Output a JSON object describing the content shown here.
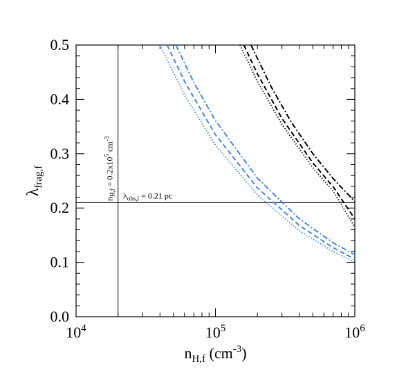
{
  "chart_data": {
    "type": "line",
    "xscale": "log",
    "xlim": [
      10000,
      1000000
    ],
    "ylim": [
      0.0,
      0.5
    ],
    "xlabel": {
      "base": "n",
      "sub": "H,f",
      "rest": " (cm",
      "sup": "-3",
      "end": ")"
    },
    "ylabel": {
      "base": "λ",
      "sub": "frag,f"
    },
    "x_tick_labels": [
      {
        "value": 10000,
        "base": "10",
        "exp": "4"
      },
      {
        "value": 100000,
        "base": "10",
        "exp": "5"
      },
      {
        "value": 1000000,
        "base": "10",
        "exp": "6"
      }
    ],
    "y_ticks": [
      0.0,
      0.1,
      0.2,
      0.3,
      0.4,
      0.5
    ],
    "y_tick_labels": [
      "0.0",
      "0.1",
      "0.2",
      "0.3",
      "0.4",
      "0.5"
    ],
    "grid": false,
    "reference_lines": [
      {
        "orientation": "vertical",
        "x": 20000,
        "label": {
          "base": "n",
          "sub": "H,f",
          "mid": " = 0.2x10",
          "sup": "5",
          "end": " cm",
          "sup2": "-3"
        }
      },
      {
        "orientation": "horizontal",
        "y": 0.21,
        "label": {
          "base": "λ",
          "sub": "obs,i",
          "end": " = 0.21 pc"
        }
      }
    ],
    "series": [
      {
        "color": "#4a86d8",
        "style": "dotted",
        "x": [
          40000,
          60000,
          100000,
          200000,
          400000,
          700000,
          1000000
        ],
        "y": [
          0.5,
          0.408,
          0.316,
          0.224,
          0.158,
          0.12,
          0.1
        ]
      },
      {
        "color": "#4a86d8",
        "style": "dashed",
        "x": [
          45000,
          60000,
          100000,
          200000,
          400000,
          700000,
          1000000
        ],
        "y": [
          0.5,
          0.433,
          0.335,
          0.237,
          0.168,
          0.127,
          0.106
        ]
      },
      {
        "color": "#4a86d8",
        "style": "dashdot",
        "x": [
          52000,
          70000,
          100000,
          200000,
          400000,
          700000,
          1000000
        ],
        "y": [
          0.5,
          0.431,
          0.361,
          0.255,
          0.18,
          0.136,
          0.114
        ]
      },
      {
        "color": "#000000",
        "style": "dotted",
        "x": [
          150000,
          200000,
          300000,
          500000,
          700000,
          1000000
        ],
        "y": [
          0.5,
          0.433,
          0.354,
          0.274,
          0.231,
          0.165
        ]
      },
      {
        "color": "#000000",
        "style": "dashed",
        "x": [
          160000,
          200000,
          300000,
          500000,
          700000,
          1000000
        ],
        "y": [
          0.5,
          0.447,
          0.365,
          0.283,
          0.239,
          0.18
        ]
      },
      {
        "color": "#000000",
        "style": "dashdot",
        "x": [
          180000,
          250000,
          350000,
          500000,
          700000,
          1000000
        ],
        "y": [
          0.5,
          0.424,
          0.358,
          0.3,
          0.254,
          0.212
        ]
      }
    ]
  }
}
